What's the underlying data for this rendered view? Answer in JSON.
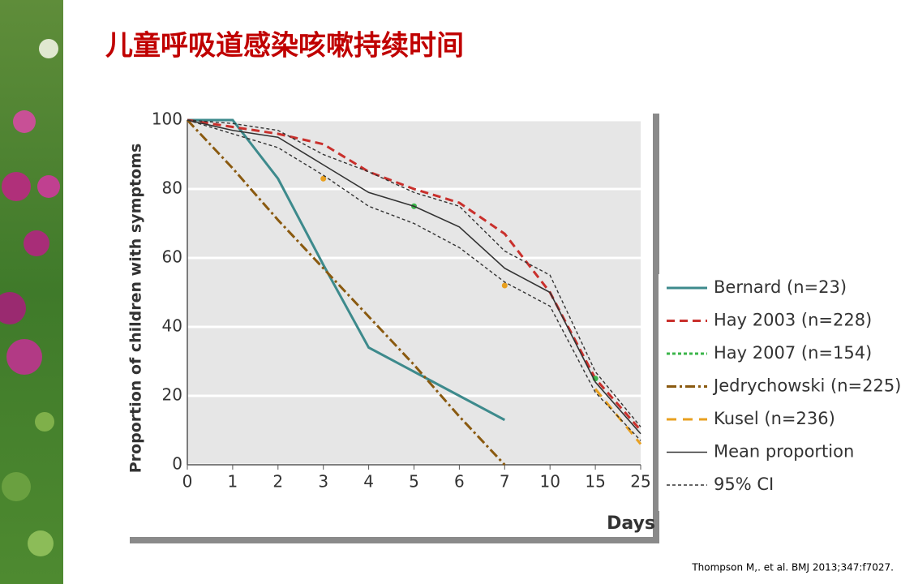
{
  "title": "儿童呼吸道感染咳嗽持续时间",
  "citation": "Thompson M,. et al. BMJ 2013;347:f7027.",
  "chart_data": {
    "type": "line",
    "y_label": "Proportion of children with symptoms",
    "x_label": "Days",
    "categories": [
      "0",
      "1",
      "2",
      "3",
      "4",
      "5",
      "6",
      "7",
      "10",
      "15",
      "25"
    ],
    "ylim": [
      0,
      100
    ],
    "yticks": [
      0,
      20,
      40,
      60,
      80,
      100
    ],
    "grid": true,
    "series": [
      {
        "name": "Bernard (n=23)",
        "color": "#3d8a8c",
        "values": [
          100,
          100,
          83,
          58,
          34,
          27,
          20,
          13,
          null,
          null,
          null
        ]
      },
      {
        "name": "Hay 2003 (n=228)",
        "color": "#c9302c",
        "values": [
          100,
          98,
          96,
          93,
          85,
          80,
          76,
          67,
          50,
          25,
          10
        ]
      },
      {
        "name": "Hay 2007 (n=154)",
        "color": "#3bb54a",
        "values": [
          null,
          null,
          null,
          null,
          null,
          75,
          null,
          null,
          null,
          25,
          null
        ]
      },
      {
        "name": "Jedrychowski (n=225)",
        "color": "#8a5a10",
        "values": [
          100,
          86,
          71,
          57,
          43,
          29,
          14,
          0,
          null,
          null,
          null
        ]
      },
      {
        "name": "Kusel (n=236)",
        "color": "#e8a020",
        "values": [
          null,
          null,
          null,
          83,
          null,
          null,
          null,
          52,
          null,
          22,
          6
        ]
      },
      {
        "name": "Mean proportion",
        "color": "#333333",
        "values": [
          100,
          97,
          95,
          87,
          79,
          75,
          69,
          57,
          50,
          24,
          9
        ]
      },
      {
        "name": "95% CI",
        "color": "#333333",
        "values": [
          100,
          99,
          97,
          90,
          85,
          79,
          75,
          62,
          55,
          27,
          11
        ],
        "lower": [
          100,
          96,
          92,
          84,
          75,
          70,
          63,
          53,
          46,
          21,
          7
        ]
      }
    ]
  }
}
